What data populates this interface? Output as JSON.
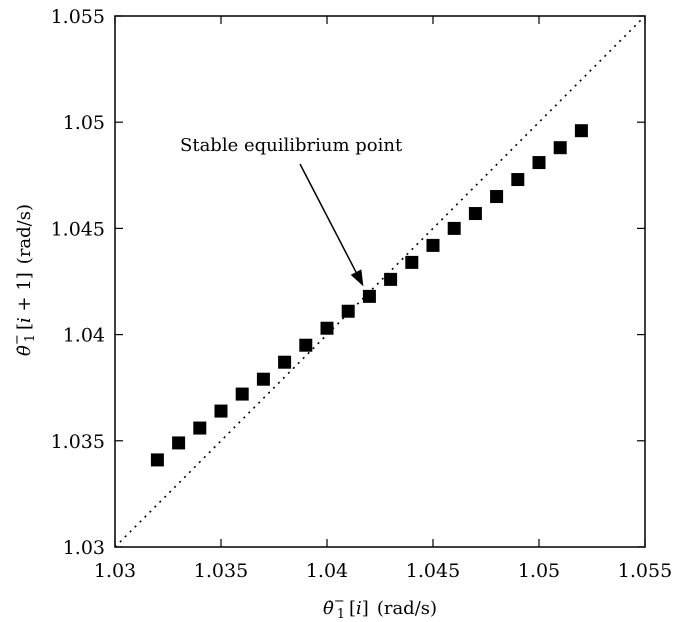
{
  "chart_data": {
    "type": "scatter",
    "title": "",
    "xlabel": {
      "symbol": "θ̇",
      "sub": "1",
      "sup": "−",
      "index_open": "[",
      "index_var": "i",
      "index_close": "]",
      "unit": "(rad/s)"
    },
    "ylabel": {
      "symbol": "θ̇",
      "sub": "1",
      "sup": "−",
      "index_open": "[",
      "index_var": "i",
      "index_rest": " + 1]",
      "unit": "(rad/s)"
    },
    "xlim": [
      1.03,
      1.055
    ],
    "ylim": [
      1.03,
      1.055
    ],
    "xticks": [
      "1.03",
      "1.035",
      "1.04",
      "1.045",
      "1.05",
      "1.055"
    ],
    "yticks": [
      "1.03",
      "1.035",
      "1.04",
      "1.045",
      "1.05",
      "1.055"
    ],
    "grid": false,
    "reference_line": {
      "style": "dotted",
      "slope": 1,
      "intercept": 0
    },
    "annotation": {
      "text": "Stable equilibrium point",
      "target": [
        1.042,
        1.0418
      ]
    },
    "series": [
      {
        "marker": "square",
        "x": [
          1.032,
          1.033,
          1.034,
          1.035,
          1.036,
          1.037,
          1.038,
          1.039,
          1.04,
          1.041,
          1.042,
          1.043,
          1.044,
          1.045,
          1.046,
          1.047,
          1.048,
          1.049,
          1.05,
          1.051,
          1.052
        ],
        "y": [
          1.0341,
          1.0349,
          1.0356,
          1.0364,
          1.0372,
          1.0379,
          1.0387,
          1.0395,
          1.0403,
          1.0411,
          1.0418,
          1.0426,
          1.0434,
          1.0442,
          1.045,
          1.0457,
          1.0465,
          1.0473,
          1.0481,
          1.0488,
          1.0496
        ]
      }
    ]
  }
}
